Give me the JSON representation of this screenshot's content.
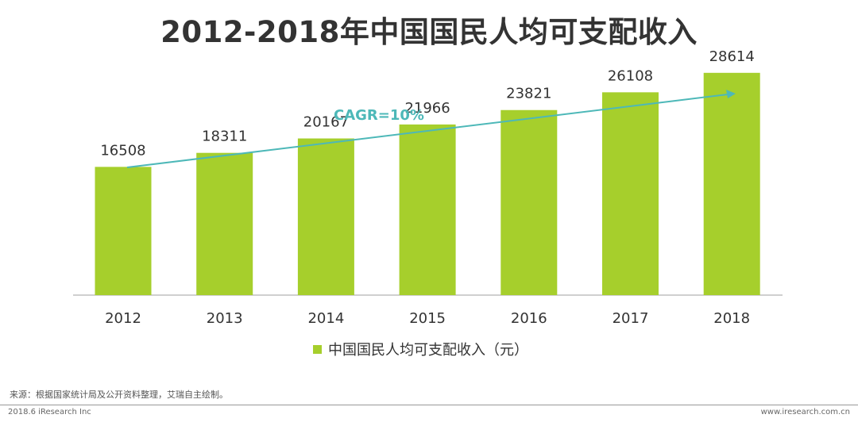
{
  "page": {
    "title": "2012-2018年中国国民人均可支配收入",
    "source_text": "来源：根据国家统计局及公开资料整理，艾瑞自主绘制。",
    "footer_left": "2018.6 iResearch Inc",
    "footer_right": "www.iresearch.com.cn"
  },
  "chart_data": {
    "type": "bar",
    "title": "2012-2018年中国国民人均可支配收入",
    "categories": [
      "2012",
      "2013",
      "2014",
      "2015",
      "2016",
      "2017",
      "2018"
    ],
    "series": [
      {
        "name": "中国国民人均可支配收入（元）",
        "values": [
          16508,
          18311,
          20167,
          21966,
          23821,
          26108,
          28614
        ],
        "color": "#a6cf2c"
      }
    ],
    "data_labels": true,
    "annotation": {
      "text": "CAGR=10%",
      "color": "#4db8b8"
    },
    "ylim": [
      0,
      30000
    ],
    "grid": false,
    "legend_position": "bottom"
  }
}
